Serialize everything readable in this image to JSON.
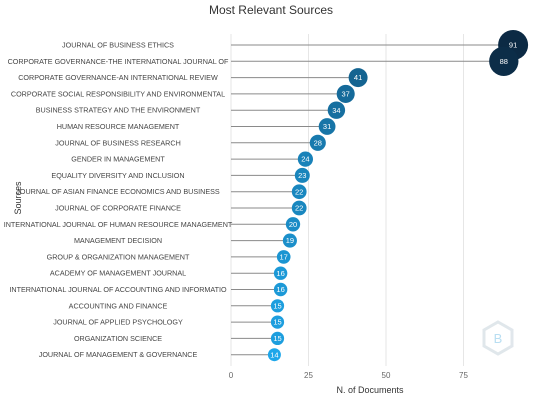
{
  "chart_data": {
    "type": "lollipop",
    "title": "Most Relevant Sources",
    "xlabel": "N. of Documents",
    "ylabel": "Sources",
    "xlim": [
      0,
      95
    ],
    "xticks": [
      "0",
      "25",
      "50",
      "75"
    ],
    "grid": true,
    "categories": [
      "JOURNAL OF BUSINESS ETHICS",
      "CORPORATE GOVERNANCE-THE INTERNATIONAL JOURNAL OF",
      "CORPORATE GOVERNANCE-AN INTERNATIONAL REVIEW",
      "CORPORATE SOCIAL RESPONSIBILITY AND ENVIRONMENTAL",
      "BUSINESS STRATEGY AND THE ENVIRONMENT",
      "HUMAN RESOURCE MANAGEMENT",
      "JOURNAL OF BUSINESS RESEARCH",
      "GENDER IN MANAGEMENT",
      "EQUALITY DIVERSITY AND INCLUSION",
      "JOURNAL OF ASIAN FINANCE ECONOMICS AND BUSINESS",
      "JOURNAL OF CORPORATE FINANCE",
      "INTERNATIONAL JOURNAL OF HUMAN RESOURCE MANAGEMENT",
      "MANAGEMENT DECISION",
      "GROUP & ORGANIZATION MANAGEMENT",
      "ACADEMY OF MANAGEMENT JOURNAL",
      "INTERNATIONAL JOURNAL OF ACCOUNTING AND INFORMATIO",
      "ACCOUNTING AND FINANCE",
      "JOURNAL OF APPLIED PSYCHOLOGY",
      "ORGANIZATION SCIENCE",
      "JOURNAL OF MANAGEMENT & GOVERNANCE"
    ],
    "values": [
      91,
      88,
      41,
      37,
      34,
      31,
      28,
      24,
      23,
      22,
      22,
      20,
      19,
      17,
      16,
      16,
      15,
      15,
      15,
      14
    ],
    "color_scale": {
      "low": "#1ea7ea",
      "high": "#0c2a44"
    }
  },
  "watermark": {
    "icon": "bibliometrix-logo-icon"
  }
}
